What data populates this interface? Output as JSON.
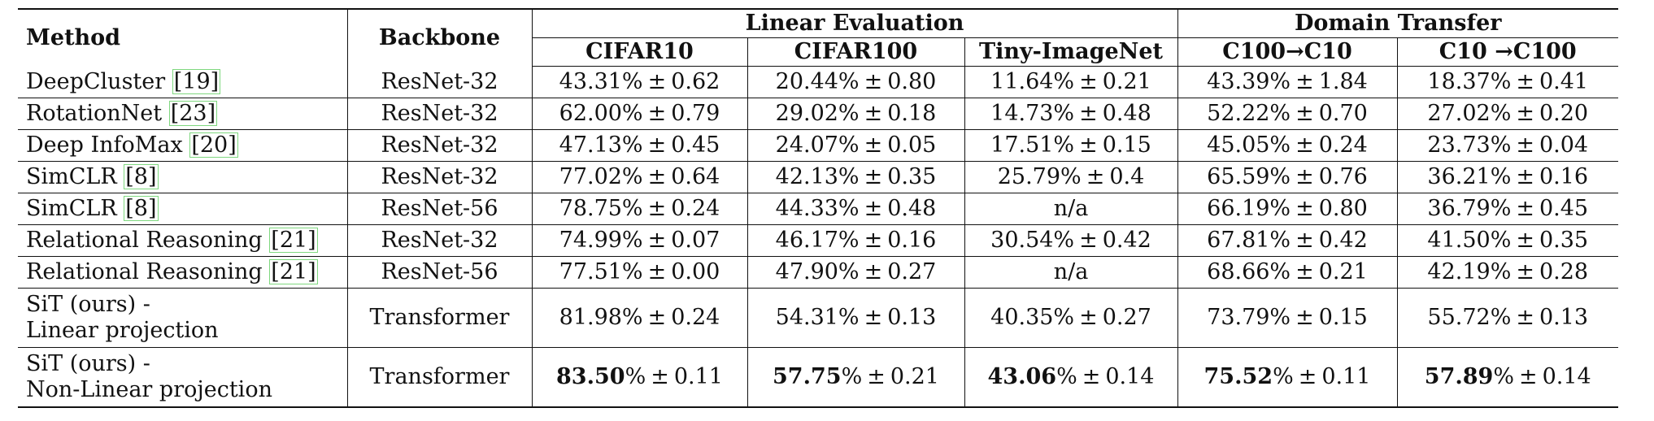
{
  "header": {
    "method": "Method",
    "backbone": "Backbone",
    "groups": [
      "Linear Evaluation",
      "Domain Transfer"
    ],
    "columns": [
      "CIFAR10",
      "CIFAR100",
      "Tiny-ImageNet",
      "C100→C10",
      "C10 →C100"
    ]
  },
  "rows": [
    {
      "method": "DeepCluster",
      "ref": "[19]",
      "backbone": "ResNet-32",
      "cells": [
        [
          "43.31%",
          "0.62"
        ],
        [
          "20.44%",
          "0.80"
        ],
        [
          "11.64%",
          "0.21"
        ],
        [
          "43.39%",
          "1.84"
        ],
        [
          "18.37%",
          "0.41"
        ]
      ]
    },
    {
      "method": "RotationNet",
      "ref": "[23]",
      "backbone": "ResNet-32",
      "cells": [
        [
          "62.00%",
          "0.79"
        ],
        [
          "29.02%",
          "0.18"
        ],
        [
          "14.73%",
          "0.48"
        ],
        [
          "52.22%",
          "0.70"
        ],
        [
          "27.02%",
          "0.20"
        ]
      ]
    },
    {
      "method": "Deep InfoMax",
      "ref": "[20]",
      "backbone": "ResNet-32",
      "cells": [
        [
          "47.13%",
          "0.45"
        ],
        [
          "24.07%",
          "0.05"
        ],
        [
          "17.51%",
          "0.15"
        ],
        [
          "45.05%",
          "0.24"
        ],
        [
          "23.73%",
          "0.04"
        ]
      ]
    },
    {
      "method": "SimCLR",
      "ref": "[8]",
      "backbone": "ResNet-32",
      "cells": [
        [
          "77.02%",
          "0.64"
        ],
        [
          "42.13%",
          "0.35"
        ],
        [
          "25.79%",
          "0.4"
        ],
        [
          "65.59%",
          "0.76"
        ],
        [
          "36.21%",
          "0.16"
        ]
      ]
    },
    {
      "method": "SimCLR",
      "ref": "[8]",
      "backbone": "ResNet-56",
      "cells": [
        [
          "78.75%",
          "0.24"
        ],
        [
          "44.33%",
          "0.48"
        ],
        [
          "n/a",
          ""
        ],
        [
          "66.19%",
          "0.80"
        ],
        [
          "36.79%",
          "0.45"
        ]
      ]
    },
    {
      "method": "Relational Reasoning",
      "ref": "[21]",
      "backbone": "ResNet-32",
      "cells": [
        [
          "74.99%",
          "0.07"
        ],
        [
          "46.17%",
          "0.16"
        ],
        [
          "30.54%",
          "0.42"
        ],
        [
          "67.81%",
          "0.42"
        ],
        [
          "41.50%",
          "0.35"
        ]
      ]
    },
    {
      "method": "Relational Reasoning",
      "ref": "[21]",
      "backbone": "ResNet-56",
      "cells": [
        [
          "77.51%",
          "0.00"
        ],
        [
          "47.90%",
          "0.27"
        ],
        [
          "n/a",
          ""
        ],
        [
          "68.66%",
          "0.21"
        ],
        [
          "42.19%",
          "0.28"
        ]
      ]
    },
    {
      "method": "SiT (ours) -",
      "method_line2": "Linear projection",
      "ref": "",
      "backbone": "Transformer",
      "cells": [
        [
          "81.98%",
          "0.24"
        ],
        [
          "54.31%",
          "0.13"
        ],
        [
          "40.35%",
          "0.27"
        ],
        [
          "73.79%",
          "0.15"
        ],
        [
          "55.72%",
          "0.13"
        ]
      ]
    },
    {
      "method": "SiT (ours) -",
      "method_line2": "Non-Linear projection",
      "ref": "",
      "backbone": "Transformer",
      "bold_main": true,
      "cells": [
        [
          "83.50",
          "0.11"
        ],
        [
          "57.75",
          "0.21"
        ],
        [
          "43.06",
          "0.14"
        ],
        [
          "75.52",
          "0.11"
        ],
        [
          "57.89",
          "0.14"
        ]
      ]
    }
  ],
  "symbols": {
    "pm": "±",
    "percent": "%"
  }
}
